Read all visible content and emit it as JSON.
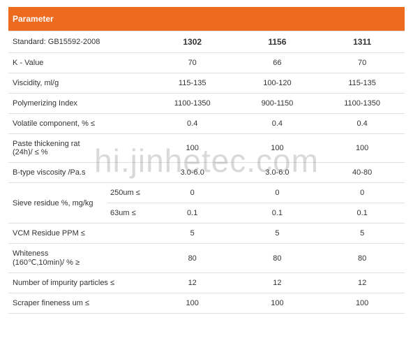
{
  "header_bg_color": "#ed6b1f",
  "border_color": "#e0e0e0",
  "text_color": "#333333",
  "header_text_color": "#ffffff",
  "background_color": "#ffffff",
  "watermark": "hi.jinhetec.com",
  "watermark_color": "rgba(120,120,120,0.28)",
  "header": {
    "param_label": "Parameter"
  },
  "rows": {
    "standard": {
      "label": "Standard: GB15592-2008",
      "v1": "1302",
      "v2": "1156",
      "v3": "1311"
    },
    "kvalue": {
      "label": "K - Value",
      "v1": "70",
      "v2": "66",
      "v3": "70"
    },
    "viscosity": {
      "label": "Viscidity, ml/g",
      "v1": "115-135",
      "v2": "100-120",
      "v3": "115-135"
    },
    "polyidx": {
      "label": "Polymerizing Index",
      "v1": "1100-1350",
      "v2": "900-1150",
      "v3": "1100-1350"
    },
    "volatile": {
      "label": "Volatile component, % ≤",
      "v1": "0.4",
      "v2": "0.4",
      "v3": "0.4"
    },
    "paste": {
      "label": "Paste thickening rat\n(24h)/ ≤ %",
      "v1": "100",
      "v2": "100",
      "v3": "100"
    },
    "btype": {
      "label": "B-type viscosity /Pa.s",
      "v1": "3.0-6.0",
      "v2": "3.0-6.0",
      "v3": "40-80"
    },
    "sieve": {
      "main": "Sieve residue %, mg/kg",
      "r250": {
        "sub": "250um ≤",
        "v1": "0",
        "v2": "0",
        "v3": "0"
      },
      "r63": {
        "sub": "63um ≤",
        "v1": "0.1",
        "v2": "0.1",
        "v3": "0.1"
      }
    },
    "vcm": {
      "label": "VCM Residue PPM ≤",
      "v1": "5",
      "v2": "5",
      "v3": "5"
    },
    "white": {
      "label": "Whiteness\n(160℃,10min)/ % ≥",
      "v1": "80",
      "v2": "80",
      "v3": "80"
    },
    "impurity": {
      "label": "Number of impurity particles ≤",
      "v1": "12",
      "v2": "12",
      "v3": "12"
    },
    "scraper": {
      "label": "Scraper fineness um ≤",
      "v1": "100",
      "v2": "100",
      "v3": "100"
    }
  }
}
